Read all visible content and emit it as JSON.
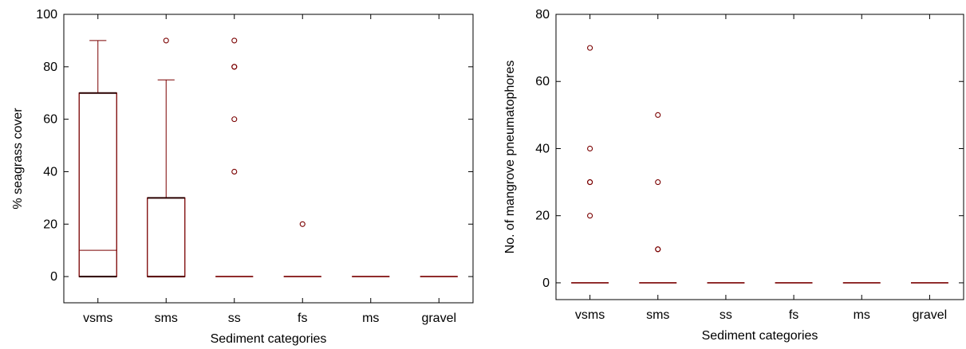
{
  "colors": {
    "box": "#7a0000",
    "whisker": "#7a0000",
    "outlier": "#7a0000",
    "frame": "#000000"
  },
  "chart_data": [
    {
      "type": "box",
      "xlabel": "Sediment categories",
      "ylabel": "% seagrass cover",
      "ylim": [
        -10,
        100
      ],
      "yticks": [
        0,
        20,
        40,
        60,
        80,
        100
      ],
      "categories": [
        "vsms",
        "sms",
        "ss",
        "fs",
        "ms",
        "gravel"
      ],
      "boxes": [
        {
          "min": 0,
          "q1": 0,
          "median": 10,
          "q3": 70,
          "max": 90,
          "outliers": []
        },
        {
          "min": 0,
          "q1": 0,
          "median": 0,
          "q3": 30,
          "max": 75,
          "outliers": [
            90
          ]
        },
        {
          "min": 0,
          "q1": 0,
          "median": 0,
          "q3": 0,
          "max": 0,
          "outliers": [
            40,
            60,
            80,
            80,
            90
          ]
        },
        {
          "min": 0,
          "q1": 0,
          "median": 0,
          "q3": 0,
          "max": 0,
          "outliers": [
            20
          ]
        },
        {
          "min": 0,
          "q1": 0,
          "median": 0,
          "q3": 0,
          "max": 0,
          "outliers": []
        },
        {
          "min": 0,
          "q1": 0,
          "median": 0,
          "q3": 0,
          "max": 0,
          "outliers": []
        }
      ]
    },
    {
      "type": "box",
      "xlabel": "Sediment categories",
      "ylabel": "No. of mangrove pneumatophores",
      "ylim": [
        -5,
        80
      ],
      "yticks": [
        0,
        20,
        40,
        60,
        80
      ],
      "categories": [
        "vsms",
        "sms",
        "ss",
        "fs",
        "ms",
        "gravel"
      ],
      "boxes": [
        {
          "min": 0,
          "q1": 0,
          "median": 0,
          "q3": 0,
          "max": 0,
          "outliers": [
            20,
            30,
            30,
            40,
            70
          ]
        },
        {
          "min": 0,
          "q1": 0,
          "median": 0,
          "q3": 0,
          "max": 0,
          "outliers": [
            10,
            10,
            30,
            50
          ]
        },
        {
          "min": 0,
          "q1": 0,
          "median": 0,
          "q3": 0,
          "max": 0,
          "outliers": []
        },
        {
          "min": 0,
          "q1": 0,
          "median": 0,
          "q3": 0,
          "max": 0,
          "outliers": []
        },
        {
          "min": 0,
          "q1": 0,
          "median": 0,
          "q3": 0,
          "max": 0,
          "outliers": []
        },
        {
          "min": 0,
          "q1": 0,
          "median": 0,
          "q3": 0,
          "max": 0,
          "outliers": []
        }
      ]
    }
  ]
}
